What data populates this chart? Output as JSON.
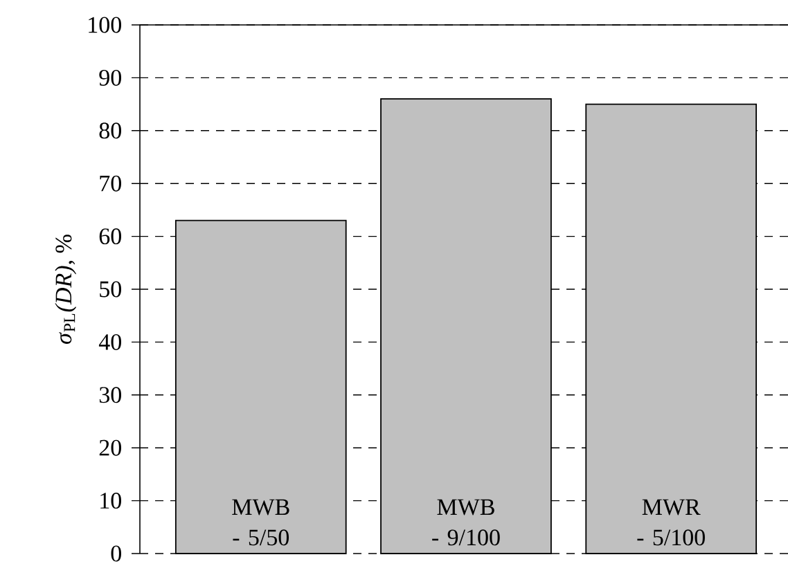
{
  "chart_data": {
    "type": "bar",
    "ylabel": "*σ*$_{PL}$*(DR)*,  %",
    "categories": [
      "MWB - 5/50",
      "MWB - 9/100",
      "MWR - 5/100"
    ],
    "values": [
      63,
      86,
      85
    ],
    "color": "#c0c0c0",
    "ylim": [
      0,
      100
    ],
    "yticks": [
      0,
      10,
      20,
      30,
      40,
      50,
      60,
      70,
      80,
      90,
      100
    ],
    "grid": "y"
  }
}
